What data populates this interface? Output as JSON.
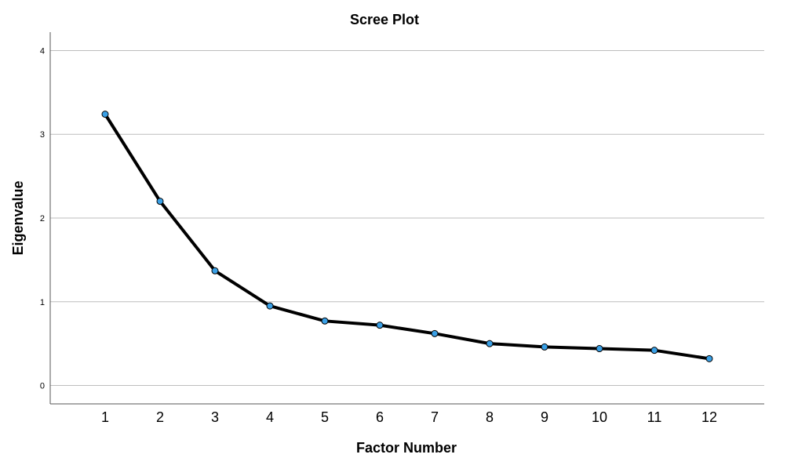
{
  "chart_data": {
    "type": "line",
    "title": "Scree Plot",
    "xlabel": "Factor Number",
    "ylabel": "Eigenvalue",
    "x": [
      1,
      2,
      3,
      4,
      5,
      6,
      7,
      8,
      9,
      10,
      11,
      12
    ],
    "series": [
      {
        "values": [
          3.24,
          2.2,
          1.37,
          0.95,
          0.77,
          0.72,
          0.62,
          0.5,
          0.46,
          0.44,
          0.42,
          0.32
        ]
      }
    ],
    "y_ticks": [
      0,
      1,
      2,
      3,
      4
    ],
    "x_ticks": [
      1,
      2,
      3,
      4,
      5,
      6,
      7,
      8,
      9,
      10,
      11,
      12
    ],
    "ylim": [
      -0.22,
      4.22
    ],
    "xlim": [
      0,
      13
    ],
    "grid": true,
    "line_color": "#000000",
    "marker_color": "#3aa0e6"
  }
}
